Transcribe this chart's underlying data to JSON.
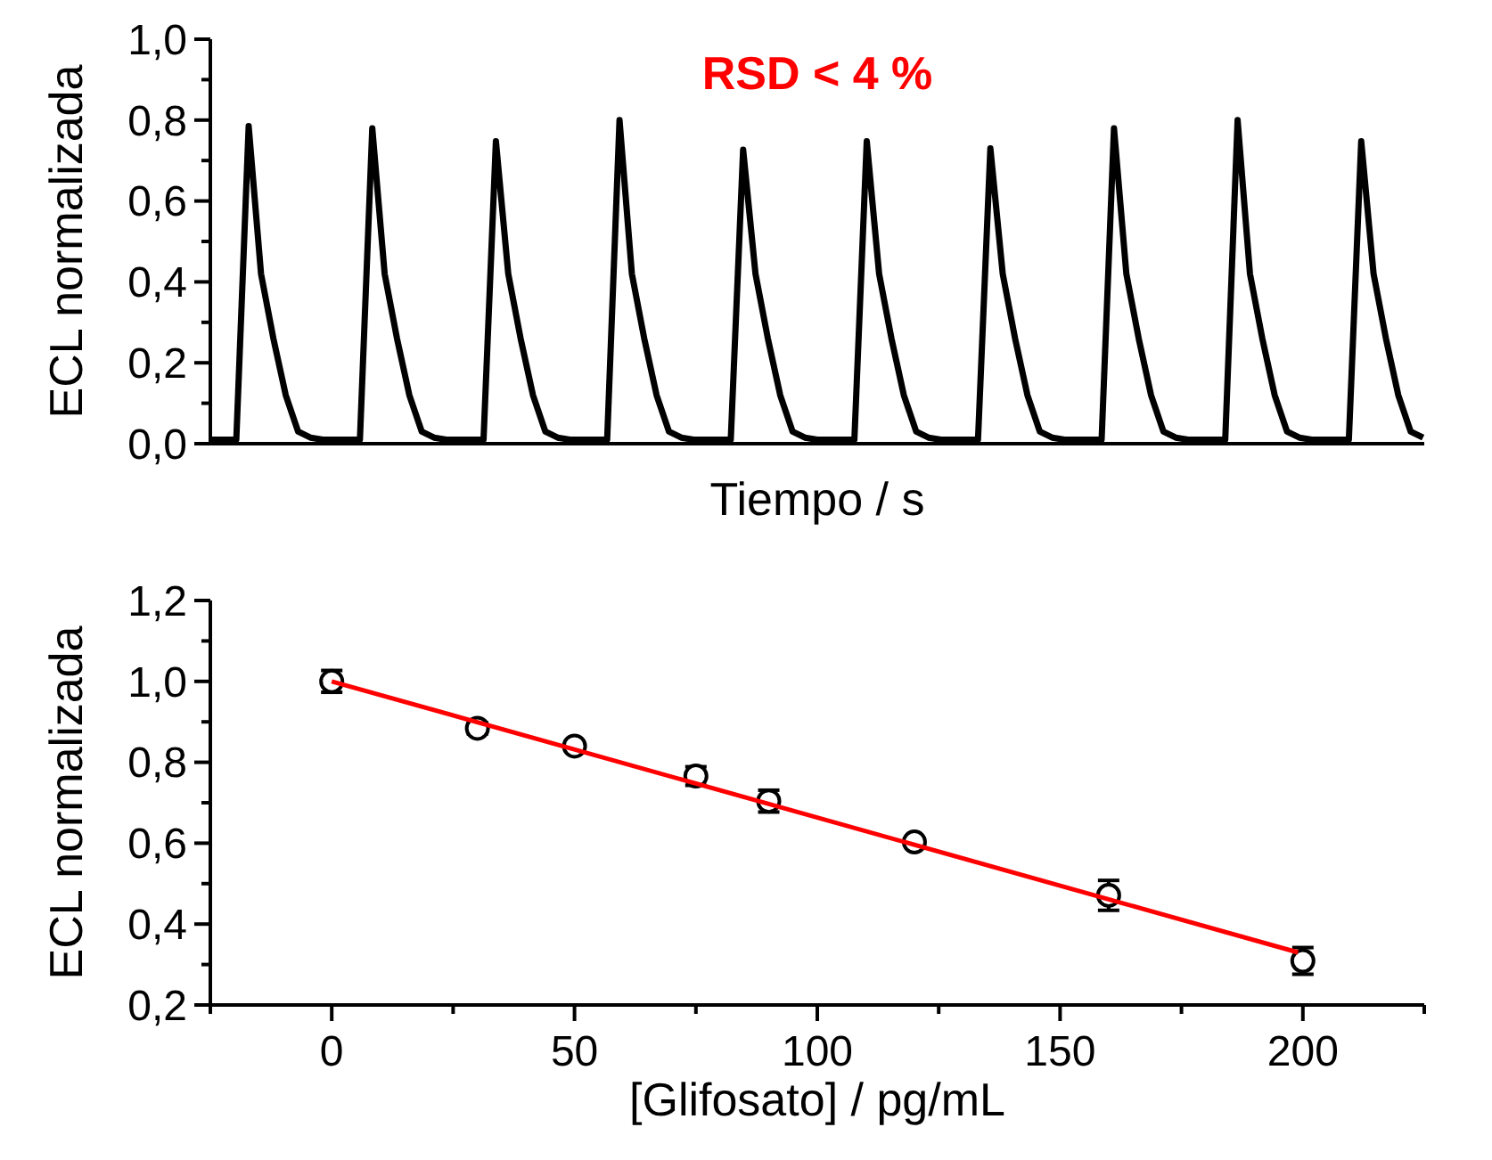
{
  "chart_data": [
    {
      "type": "line",
      "ylabel": "ECL normalizada",
      "xlabel": "Tiempo / s",
      "annotations": [
        "RSD < 4 %"
      ],
      "tick_labels": "y",
      "line_style": "solid",
      "categories": [
        null,
        null,
        null,
        null,
        null,
        null,
        null,
        null,
        null,
        null,
        null,
        null,
        null,
        null,
        null,
        null,
        null,
        null,
        null,
        null,
        null,
        null,
        null,
        null,
        null,
        null,
        null,
        null,
        null,
        null,
        null,
        null,
        null,
        null,
        null,
        null,
        null,
        null,
        null,
        null,
        null,
        null,
        null,
        null,
        null,
        null,
        null,
        null,
        null,
        null,
        null,
        null,
        null,
        null,
        null,
        null,
        null,
        null,
        null,
        null,
        null,
        null,
        null,
        null,
        null,
        null,
        null,
        null,
        null,
        null,
        null,
        null,
        null,
        null,
        null,
        null,
        null,
        null,
        null,
        null,
        null,
        null,
        null,
        null,
        null,
        null,
        null,
        null,
        null,
        null,
        null,
        null,
        null,
        null,
        null,
        null,
        null,
        null,
        null
      ],
      "series": [
        {
          "color": "#000000",
          "values": [
            0.01,
            0.01,
            0.01,
            0.785,
            0.42,
            0.26,
            0.12,
            0.03,
            0.015,
            0.01,
            0.01,
            0.01,
            0.01,
            0.78,
            0.42,
            0.26,
            0.12,
            0.03,
            0.015,
            0.01,
            0.01,
            0.01,
            0.01,
            0.748,
            0.42,
            0.26,
            0.12,
            0.03,
            0.015,
            0.01,
            0.01,
            0.01,
            0.01,
            0.8,
            0.42,
            0.26,
            0.12,
            0.03,
            0.015,
            0.01,
            0.01,
            0.01,
            0.01,
            0.727,
            0.42,
            0.26,
            0.12,
            0.03,
            0.015,
            0.01,
            0.01,
            0.01,
            0.01,
            0.748,
            0.42,
            0.26,
            0.12,
            0.03,
            0.015,
            0.01,
            0.01,
            0.01,
            0.01,
            0.73,
            0.42,
            0.26,
            0.12,
            0.03,
            0.015,
            0.01,
            0.01,
            0.01,
            0.01,
            0.78,
            0.42,
            0.26,
            0.12,
            0.03,
            0.015,
            0.01,
            0.01,
            0.01,
            0.01,
            0.8,
            0.42,
            0.26,
            0.12,
            0.03,
            0.015,
            0.01,
            0.01,
            0.01,
            0.01,
            0.748,
            0.42,
            0.26,
            0.12,
            0.03,
            0.015
          ]
        }
      ],
      "ylim": [
        0,
        1.0
      ],
      "yticks": [
        {
          "value": 0,
          "label": "0,0"
        },
        {
          "value": 0.1,
          "label": null
        },
        {
          "value": 0.2,
          "label": "0,2"
        },
        {
          "value": 0.3,
          "label": null
        },
        {
          "value": 0.4,
          "label": "0,4"
        },
        {
          "value": 0.5,
          "label": null
        },
        {
          "value": 0.6,
          "label": "0,6"
        },
        {
          "value": 0.7,
          "label": null
        },
        {
          "value": 0.8,
          "label": "0,8"
        },
        {
          "value": 0.9,
          "label": null
        },
        {
          "value": 1.0,
          "label": "1,0"
        }
      ]
    },
    {
      "type": "scatter",
      "ylabel": "ECL normalizada",
      "xlabel": "[Glifosato] / pg/mL",
      "series": [
        {
          "color": "#000000",
          "marker": "circle",
          "x": [
            0,
            30,
            50,
            75,
            90,
            120,
            160,
            200
          ],
          "values": [
            1.0,
            0.884,
            0.84,
            0.766,
            0.704,
            0.603,
            0.471,
            0.309
          ],
          "errors": [
            0.027,
            0.014,
            null,
            0.023,
            0.027,
            null,
            0.037,
            0.033
          ]
        },
        {
          "type": "line",
          "color": "#ff0000",
          "x": [
            0,
            199
          ],
          "values": [
            1.0,
            0.33
          ]
        }
      ],
      "xlim": [
        -25,
        225
      ],
      "xticks": [
        {
          "value": -25,
          "label": null
        },
        0,
        {
          "value": 25,
          "label": null
        },
        50,
        {
          "value": 75,
          "label": null
        },
        100,
        {
          "value": 125,
          "label": null
        },
        150,
        {
          "value": 175,
          "label": null
        },
        200,
        {
          "value": 225,
          "label": null
        }
      ],
      "ylim": [
        0.2,
        1.2
      ],
      "yticks": [
        {
          "value": 0.2,
          "label": "0,2"
        },
        {
          "value": 0.3,
          "label": null
        },
        {
          "value": 0.4,
          "label": "0,4"
        },
        {
          "value": 0.5,
          "label": null
        },
        {
          "value": 0.6,
          "label": "0,6"
        },
        {
          "value": 0.7,
          "label": null
        },
        {
          "value": 0.8,
          "label": "0,8"
        },
        {
          "value": 0.9,
          "label": null
        },
        {
          "value": 1.0,
          "label": "1,0"
        },
        {
          "value": 1.1,
          "label": null
        },
        {
          "value": 1.2,
          "label": "1,2"
        }
      ]
    }
  ]
}
